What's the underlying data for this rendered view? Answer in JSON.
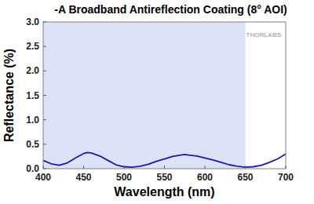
{
  "chart_data": {
    "type": "line",
    "title": "-A Broadband Antireflection Coating (8° AOI)",
    "x_label": "Wavelength (nm)",
    "y_label": "Reflectance (%)",
    "annotations": [
      "THORLABS"
    ],
    "shaded_range": [
      400,
      650
    ],
    "x": [
      400,
      410,
      420,
      430,
      440,
      450,
      455,
      460,
      470,
      480,
      490,
      500,
      510,
      520,
      530,
      540,
      550,
      560,
      570,
      575,
      580,
      590,
      600,
      610,
      620,
      630,
      640,
      650,
      660,
      670,
      680,
      690,
      700
    ],
    "values": [
      0.17,
      0.1,
      0.07,
      0.12,
      0.22,
      0.31,
      0.33,
      0.32,
      0.26,
      0.17,
      0.08,
      0.04,
      0.03,
      0.05,
      0.09,
      0.15,
      0.2,
      0.25,
      0.28,
      0.29,
      0.28,
      0.26,
      0.22,
      0.18,
      0.13,
      0.08,
      0.05,
      0.03,
      0.04,
      0.07,
      0.13,
      0.2,
      0.3
    ],
    "color": "#1a1ab0",
    "xlim": [
      400,
      700
    ],
    "ylim": [
      0,
      3
    ],
    "xticks": [
      400,
      450,
      500,
      550,
      600,
      650,
      700
    ],
    "yticks": [
      {
        "value": 0,
        "label": "0.0"
      },
      {
        "value": 0.5,
        "label": "0.5"
      },
      {
        "value": 1,
        "label": "1.0"
      },
      {
        "value": 1.5,
        "label": "1.5"
      },
      {
        "value": 2,
        "label": "2.0"
      },
      {
        "value": 2.5,
        "label": "2.5"
      },
      {
        "value": 3,
        "label": "3.0"
      }
    ],
    "grid": false
  }
}
